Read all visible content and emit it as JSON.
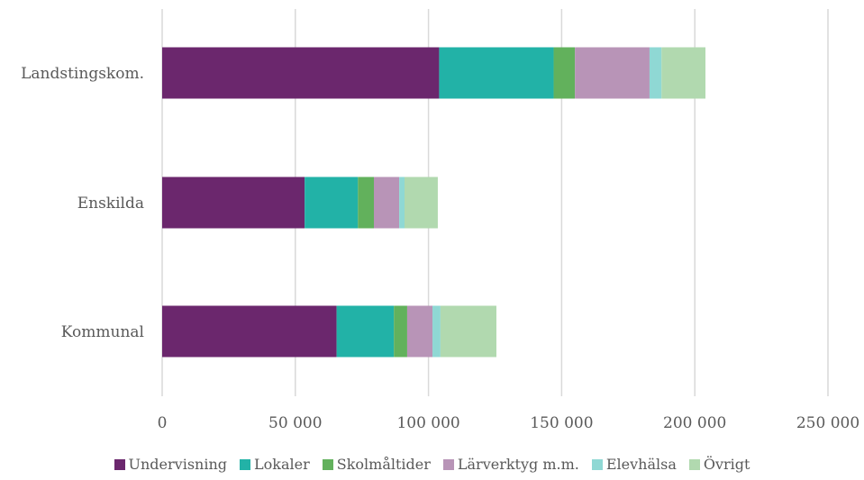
{
  "chart_data": {
    "type": "bar",
    "orientation": "horizontal",
    "stacked": true,
    "categories": [
      "Kommunal",
      "Enskilda",
      "Landstingskom."
    ],
    "series": [
      {
        "name": "Undervisning",
        "color": "#6b276d",
        "values": [
          65500,
          53500,
          104000
        ]
      },
      {
        "name": "Lokaler",
        "color": "#22b2a7",
        "values": [
          21500,
          20000,
          43000
        ]
      },
      {
        "name": "Skolmåltider",
        "color": "#62b15c",
        "values": [
          5000,
          6000,
          8000
        ]
      },
      {
        "name": "Lärverktyg m.m.",
        "color": "#b894b7",
        "values": [
          9500,
          9500,
          28000
        ]
      },
      {
        "name": "Elevhälsa",
        "color": "#8fd8d4",
        "values": [
          3000,
          2000,
          4500
        ]
      },
      {
        "name": "Övrigt",
        "color": "#b1d9af",
        "values": [
          21000,
          12500,
          16500
        ]
      }
    ],
    "xlim": [
      0,
      250000
    ],
    "xticks": [
      0,
      50000,
      100000,
      150000,
      200000,
      250000
    ],
    "xtick_labels": [
      "0",
      "50 000",
      "100 000",
      "150 000",
      "200 000",
      "250 000"
    ],
    "grid": true,
    "legend_position": "bottom",
    "title": "",
    "xlabel": "",
    "ylabel": ""
  }
}
